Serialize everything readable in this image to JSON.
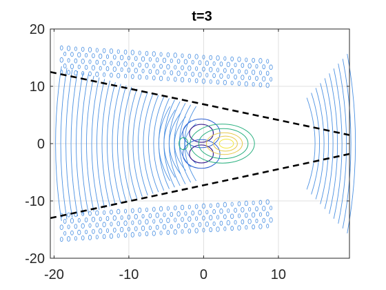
{
  "chart_data": {
    "type": "contour",
    "title": "t=3",
    "xlabel": "",
    "ylabel": "",
    "xlim": [
      -20.5,
      19.5
    ],
    "ylim": [
      -20,
      20
    ],
    "xticks": [
      -20,
      -10,
      0,
      10
    ],
    "yticks": [
      -20,
      -10,
      0,
      10,
      20
    ],
    "xtick_labels": [
      "-20",
      "-10",
      "0",
      "10"
    ],
    "ytick_labels": [
      "-20",
      "-10",
      "0",
      "10",
      "20"
    ],
    "grid": true,
    "dashed_lines": [
      {
        "name": "",
        "x": [
          -20.5,
          19.5
        ],
        "y": [
          12.5,
          1.5
        ]
      },
      {
        "name": "",
        "x": [
          -20.5,
          19.5
        ],
        "y": [
          -13.0,
          -1.8
        ]
      }
    ],
    "central_contours": {
      "negative_lobes": [
        {
          "cx": -0.3,
          "cy": 1.8,
          "rx": 1.6,
          "ry": 1.2
        },
        {
          "cx": -0.3,
          "cy": -1.8,
          "rx": 1.6,
          "ry": 1.2
        }
      ],
      "positive_peak": {
        "cx": 2.5,
        "cy": 0.0
      }
    },
    "colors": {
      "low": "#3b1f8f",
      "mid_low": "#2c5fd1",
      "background_waves": "#4a90e2",
      "mid_high": "#2ab07f",
      "high": "#e6c84a",
      "peak": "#f2e640",
      "dashed": "#000000"
    }
  }
}
